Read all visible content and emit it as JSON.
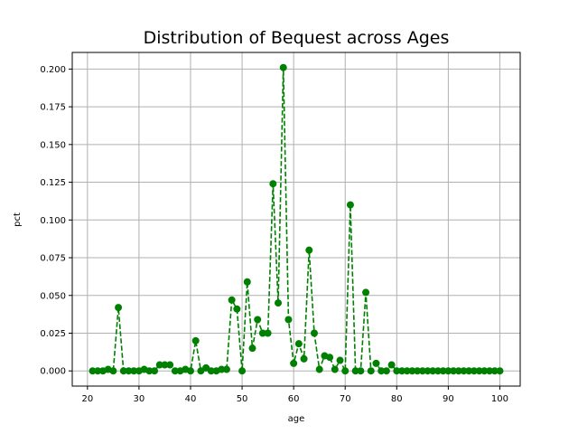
{
  "chart_data": {
    "type": "line",
    "title": "Distribution of Bequest across Ages",
    "xlabel": "age",
    "ylabel": "pct",
    "xlim": [
      17.05,
      103.95
    ],
    "ylim": [
      -0.01005,
      0.211
    ],
    "xticks": [
      20,
      30,
      40,
      50,
      60,
      70,
      80,
      90,
      100
    ],
    "yticks": [
      0.0,
      0.025,
      0.05,
      0.075,
      0.1,
      0.125,
      0.15,
      0.175,
      0.2
    ],
    "ytick_labels": [
      "0.000",
      "0.025",
      "0.050",
      "0.075",
      "0.100",
      "0.125",
      "0.150",
      "0.175",
      "0.200"
    ],
    "grid": true,
    "series": [
      {
        "color": "#008000",
        "linestyle": "dashed",
        "marker": "circle",
        "x": [
          21,
          22,
          23,
          24,
          25,
          26,
          27,
          28,
          29,
          30,
          31,
          32,
          33,
          34,
          35,
          36,
          37,
          38,
          39,
          40,
          41,
          42,
          43,
          44,
          45,
          46,
          47,
          48,
          49,
          50,
          51,
          52,
          53,
          54,
          55,
          56,
          57,
          58,
          59,
          60,
          61,
          62,
          63,
          64,
          65,
          66,
          67,
          68,
          69,
          70,
          71,
          72,
          73,
          74,
          75,
          76,
          77,
          78,
          79,
          80,
          81,
          82,
          83,
          84,
          85,
          86,
          87,
          88,
          89,
          90,
          91,
          92,
          93,
          94,
          95,
          96,
          97,
          98,
          99,
          100
        ],
        "values": [
          0.0,
          0.0,
          0.0,
          0.001,
          0.0,
          0.042,
          0.0,
          0.0,
          0.0,
          0.0,
          0.001,
          0.0,
          0.0,
          0.004,
          0.004,
          0.004,
          0.0,
          0.0,
          0.001,
          0.0,
          0.02,
          0.0,
          0.002,
          0.0,
          0.0,
          0.001,
          0.001,
          0.047,
          0.041,
          0.0,
          0.059,
          0.015,
          0.034,
          0.025,
          0.025,
          0.124,
          0.045,
          0.201,
          0.034,
          0.005,
          0.018,
          0.008,
          0.08,
          0.025,
          0.001,
          0.01,
          0.009,
          0.001,
          0.007,
          0.0,
          0.11,
          0.0,
          0.0,
          0.052,
          0.0,
          0.005,
          0.0,
          0.0,
          0.004,
          0.0,
          0.0,
          0.0,
          0.0,
          0.0,
          0.0,
          0.0,
          0.0,
          0.0,
          0.0,
          0.0,
          0.0,
          0.0,
          0.0,
          0.0,
          0.0,
          0.0,
          0.0,
          0.0,
          0.0,
          0.0
        ]
      }
    ]
  }
}
